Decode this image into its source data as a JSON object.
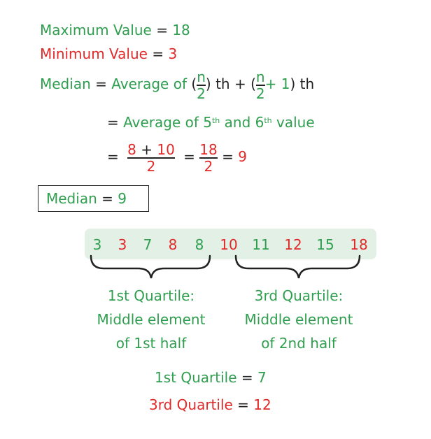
{
  "max": {
    "label": "Maximum Value",
    "eq": "=",
    "value": "18"
  },
  "min": {
    "label": "Minimum Value",
    "eq": "=",
    "value": "3"
  },
  "median_formula": {
    "label": "Median",
    "eq": "=",
    "text": "Average of",
    "open_paren": "(",
    "frac_num": "n",
    "frac_den": "2",
    "close_th": ") th",
    "plus": "+",
    "open_paren2": "(",
    "frac2_num": "n",
    "frac2_den": "2",
    "plus_one": "+ 1",
    "close_th2": ") th"
  },
  "median_line2": {
    "eq": "=",
    "text": "Average of 5",
    "sup1": "th",
    "and": "and 6",
    "sup2": "th",
    "value": "value"
  },
  "median_line3": {
    "eq": "=",
    "f1_num_a": "8",
    "f1_plus": "+",
    "f1_num_b": "10",
    "f1_den": "2",
    "eq2": "=",
    "f2_num": "18",
    "f2_den": "2",
    "eq3": "=",
    "result": "9"
  },
  "median_result": {
    "label": "Median",
    "eq": "=",
    "value": "9"
  },
  "sorted_values": [
    "3",
    "3",
    "7",
    "8",
    "8",
    "10",
    "11",
    "12",
    "15",
    "18"
  ],
  "value_colors": [
    "#2f9e4f",
    "#e02a2a",
    "#2f9e4f",
    "#e02a2a",
    "#2f9e4f",
    "#e02a2a",
    "#2f9e4f",
    "#e02a2a",
    "#2f9e4f",
    "#e02a2a"
  ],
  "q1_desc": [
    "1st Quartile:",
    "Middle element",
    "of 1st half"
  ],
  "q3_desc": [
    "3rd Quartile:",
    "Middle element",
    "of 2nd half"
  ],
  "q1_result": {
    "label": "1st Quartile",
    "eq": "=",
    "value": "7"
  },
  "q3_result": {
    "label": "3rd Quartile",
    "eq": "=",
    "value": "12"
  },
  "colors": {
    "green": "#2f9e4f",
    "red": "#e02a2a",
    "strip": "#e3f0e6"
  }
}
